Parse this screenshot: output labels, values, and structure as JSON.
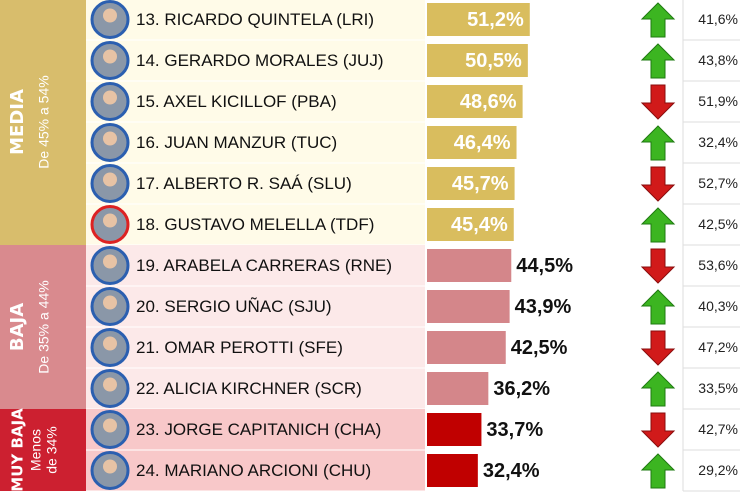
{
  "chart_data": {
    "type": "bar",
    "xlim": [
      14,
      90
    ],
    "groups": [
      {
        "name": "MEDIA",
        "range": [
          "De 45% a 54%"
        ],
        "band_color": "#d8bd6c",
        "row_color": "#fffbe8",
        "bar_color": "#d9bd5e",
        "label_inside": true,
        "rows": [
          {
            "name": "13. RICARDO QUINTELA (LRI)",
            "value": 51.2,
            "value_label": "51,2%",
            "trend": "up",
            "previous": 41.6,
            "previous_label": "41,6%"
          },
          {
            "name": "14. GERARDO MORALES (JUJ)",
            "value": 50.5,
            "value_label": "50,5%",
            "trend": "up",
            "previous": 43.8,
            "previous_label": "43,8%"
          },
          {
            "name": "15. AXEL KICILLOF (PBA)",
            "value": 48.6,
            "value_label": "48,6%",
            "trend": "down",
            "previous": 51.9,
            "previous_label": "51,9%"
          },
          {
            "name": "16. JUAN MANZUR (TUC)",
            "value": 46.4,
            "value_label": "46,4%",
            "trend": "up",
            "previous": 32.4,
            "previous_label": "32,4%"
          },
          {
            "name": "17.  ALBERTO R. SAÁ (SLU)",
            "value": 45.7,
            "value_label": "45,7%",
            "trend": "down",
            "previous": 52.7,
            "previous_label": "52,7%"
          },
          {
            "name": "18. GUSTAVO MELELLA (TDF)",
            "value": 45.4,
            "value_label": "45,4%",
            "trend": "up",
            "previous": 42.5,
            "previous_label": "42,5%"
          }
        ]
      },
      {
        "name": "BAJA",
        "range": [
          "De 35% a 44%"
        ],
        "band_color": "#d98a8e",
        "row_color": "#fce9e9",
        "bar_color": "#d4868a",
        "label_inside": false,
        "rows": [
          {
            "name": "19. ARABELA CARRERAS (RNE)",
            "value": 44.5,
            "value_label": "44,5%",
            "trend": "down",
            "previous": 53.6,
            "previous_label": "53,6%"
          },
          {
            "name": "20. SERGIO UÑAC (SJU)",
            "value": 43.9,
            "value_label": "43,9%",
            "trend": "up",
            "previous": 40.3,
            "previous_label": "40,3%"
          },
          {
            "name": "21. OMAR PEROTTI (SFE)",
            "value": 42.5,
            "value_label": "42,5%",
            "trend": "down",
            "previous": 47.2,
            "previous_label": "47,2%"
          },
          {
            "name": "22. ALICIA KIRCHNER (SCR)",
            "value": 36.2,
            "value_label": "36,2%",
            "trend": "up",
            "previous": 33.5,
            "previous_label": "33,5%"
          }
        ]
      },
      {
        "name": "MUY BAJA",
        "range": [
          "Menos",
          "de 34%"
        ],
        "band_color": "#cc2030",
        "row_color": "#f8c8c9",
        "bar_color": "#c00000",
        "label_inside": false,
        "rows": [
          {
            "name": "23. JORGE CAPITANICH (CHA)",
            "value": 33.7,
            "value_label": "33,7%",
            "trend": "down",
            "previous": 42.7,
            "previous_label": "42,7%"
          },
          {
            "name": "24. MARIANO ARCIONI (CHU)",
            "value": 32.4,
            "value_label": "32,4%",
            "trend": "up",
            "previous": 29.2,
            "previous_label": "29,2%"
          }
        ]
      }
    ]
  }
}
